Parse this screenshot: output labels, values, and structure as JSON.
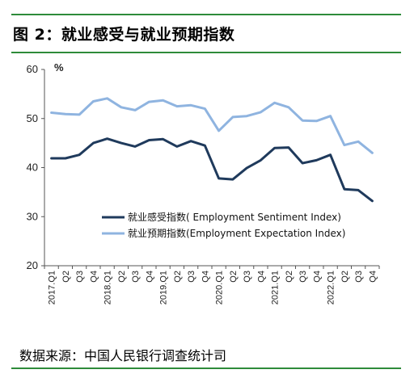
{
  "figure": {
    "title": "图 2：就业感受与就业预期指数",
    "source": "数据来源：中国人民银行调查统计司"
  },
  "colors": {
    "rule": "#2e8b3a",
    "sentiment": "#1f3a5c",
    "expectation": "#8fb4e0"
  },
  "chart_data": {
    "type": "line",
    "ylabel": "%",
    "ylim": [
      20,
      60
    ],
    "yticks": [
      20,
      30,
      40,
      50,
      60
    ],
    "grid": false,
    "legend_position": "center-right",
    "categories": [
      "2017.Q1",
      "Q2",
      "Q3",
      "Q4",
      "2018.Q1",
      "Q2",
      "Q3",
      "Q4",
      "2019.Q1",
      "Q2",
      "Q3",
      "Q4",
      "2020.Q1",
      "Q2",
      "Q3",
      "Q4",
      "2021.Q1",
      "Q2",
      "Q3",
      "Q4",
      "2022.Q1",
      "Q2",
      "Q3",
      "Q4"
    ],
    "series": [
      {
        "name": "就业感受指数( Employment Sentiment Index)",
        "values": [
          41.9,
          41.9,
          42.6,
          45.0,
          45.9,
          45.0,
          44.3,
          45.6,
          45.8,
          44.3,
          45.4,
          44.5,
          37.8,
          37.6,
          39.9,
          41.5,
          44.0,
          44.1,
          40.9,
          41.5,
          42.6,
          35.6,
          35.4,
          33.2
        ]
      },
      {
        "name": "就业预期指数(Employment Expectation Index)",
        "values": [
          51.2,
          50.9,
          50.8,
          53.5,
          54.1,
          52.3,
          51.7,
          53.4,
          53.7,
          52.5,
          52.7,
          52.0,
          47.5,
          50.3,
          50.5,
          51.3,
          53.2,
          52.3,
          49.6,
          49.5,
          50.5,
          44.6,
          45.3,
          43.0
        ]
      }
    ]
  }
}
